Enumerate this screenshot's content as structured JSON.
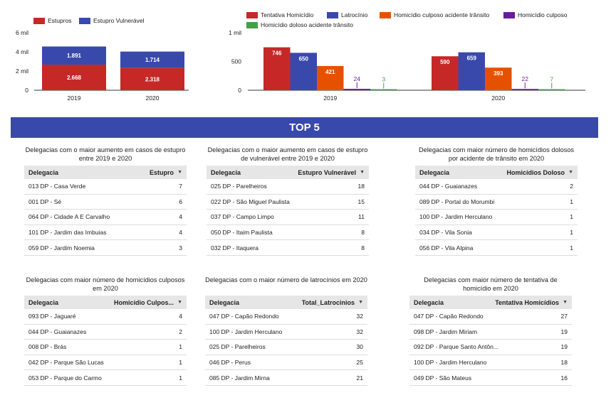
{
  "chart_data": [
    {
      "type": "bar",
      "stacked": true,
      "categories": [
        "2019",
        "2020"
      ],
      "series": [
        {
          "name": "Estupros",
          "color": "#c62828",
          "values": [
            2668,
            2318
          ],
          "labels": [
            "2.668",
            "2.318"
          ]
        },
        {
          "name": "Estupro Vulnerável",
          "color": "#3949ab",
          "values": [
            1891,
            1714
          ],
          "labels": [
            "1.891",
            "1.714"
          ]
        }
      ],
      "y_ticks": [
        "6 mil",
        "4 mil",
        "2 mil",
        "0"
      ],
      "ylim": [
        0,
        6000
      ],
      "legend_position": "top-left",
      "grid": false
    },
    {
      "type": "bar",
      "categories": [
        "2019",
        "2020"
      ],
      "series": [
        {
          "name": "Tentativa Homicídio",
          "color": "#c62828",
          "values": [
            746,
            590
          ],
          "labels": [
            "746",
            "590"
          ]
        },
        {
          "name": "Latrocínio",
          "color": "#3949ab",
          "values": [
            650,
            659
          ],
          "labels": [
            "650",
            "659"
          ]
        },
        {
          "name": "Homicídio culposo acidente trânsito",
          "color": "#e65100",
          "values": [
            421,
            393
          ],
          "labels": [
            "421",
            "393"
          ]
        },
        {
          "name": "Homicídio culposo",
          "color": "#6a1b9a",
          "values": [
            24,
            22
          ],
          "labels": [
            "24",
            "22"
          ]
        },
        {
          "name": "Homicídio doloso acidente trânsito",
          "color": "#43a047",
          "values": [
            3,
            7
          ],
          "labels": [
            "3",
            "7"
          ]
        }
      ],
      "y_ticks": [
        "1 mil",
        "500",
        "0"
      ],
      "ylim": [
        0,
        1000
      ],
      "legend_position": "top",
      "grid": false
    }
  ],
  "banner": {
    "title": "TOP 5"
  },
  "tables": [
    {
      "title": "Delegacias com o maior aumento em casos de estupro entre 2019 e 2020",
      "col1": "Delegacia",
      "col2": "Estupro",
      "rows": [
        {
          "name": "013 DP - Casa Verde",
          "value": "7"
        },
        {
          "name": "001 DP - Sé",
          "value": "6"
        },
        {
          "name": "064 DP - Cidade A E Carvalho",
          "value": "4"
        },
        {
          "name": "101 DP - Jardim das Imbuias",
          "value": "4"
        },
        {
          "name": "059 DP - Jardim Noemia",
          "value": "3"
        }
      ]
    },
    {
      "title": "Delegacias com o maior aumento em casos de estupro de vulnerável entre 2019 e 2020",
      "col1": "Delegacia",
      "col2": "Estupro Vulnerável",
      "rows": [
        {
          "name": "025 DP - Parelheiros",
          "value": "18"
        },
        {
          "name": "022 DP - São Miguel Paulista",
          "value": "15"
        },
        {
          "name": "037 DP - Campo Limpo",
          "value": "11"
        },
        {
          "name": "050 DP - Itaim Paulista",
          "value": "8"
        },
        {
          "name": "032 DP - Itaquera",
          "value": "8"
        }
      ]
    },
    {
      "title": "Delegacias com maior número de homicídios dolosos por acidente de trânsito em 2020",
      "col1": "Delegacia",
      "col2": "Homicídios Doloso",
      "rows": [
        {
          "name": "044 DP - Guaianazes",
          "value": "2"
        },
        {
          "name": "089 DP - Portal do Morumbi",
          "value": "1"
        },
        {
          "name": "100 DP - Jardim Herculano",
          "value": "1"
        },
        {
          "name": "034 DP - Vila Sonia",
          "value": "1"
        },
        {
          "name": "056 DP - Vila Alpina",
          "value": "1"
        }
      ]
    },
    {
      "title": "Delegacias com maior número de homicídios culposos em 2020",
      "col1": "Delegacia",
      "col2": "Homicídio Culpos...",
      "rows": [
        {
          "name": "093 DP - Jaguaré",
          "value": "4"
        },
        {
          "name": "044 DP - Guaianazes",
          "value": "2"
        },
        {
          "name": "008 DP - Brás",
          "value": "1"
        },
        {
          "name": "042 DP - Parque São Lucas",
          "value": "1"
        },
        {
          "name": "053 DP - Parque do Carmo",
          "value": "1"
        }
      ]
    },
    {
      "title": "Delegacias com o maior número de latrocínios em 2020",
      "col1": "Delegacia",
      "col2": "Total_Latrocinios",
      "rows": [
        {
          "name": "047 DP - Capão Redondo",
          "value": "32"
        },
        {
          "name": "100 DP - Jardim Herculano",
          "value": "32"
        },
        {
          "name": "025 DP - Parelheiros",
          "value": "30"
        },
        {
          "name": "046 DP - Perus",
          "value": "25"
        },
        {
          "name": "085 DP - Jardim Mirna",
          "value": "21"
        }
      ]
    },
    {
      "title": "Delegacias com maior número de tentativa de homicídio em 2020",
      "col1": "Delegacia",
      "col2": "Tentativa Homicídios",
      "rows": [
        {
          "name": "047 DP - Capão Redondo",
          "value": "27"
        },
        {
          "name": "098 DP - Jardim Miriam",
          "value": "19"
        },
        {
          "name": "092 DP - Parque Santo Antôn...",
          "value": "19"
        },
        {
          "name": "100 DP - Jardim Herculano",
          "value": "18"
        },
        {
          "name": "049 DP - São Mateus",
          "value": "16"
        }
      ]
    }
  ]
}
